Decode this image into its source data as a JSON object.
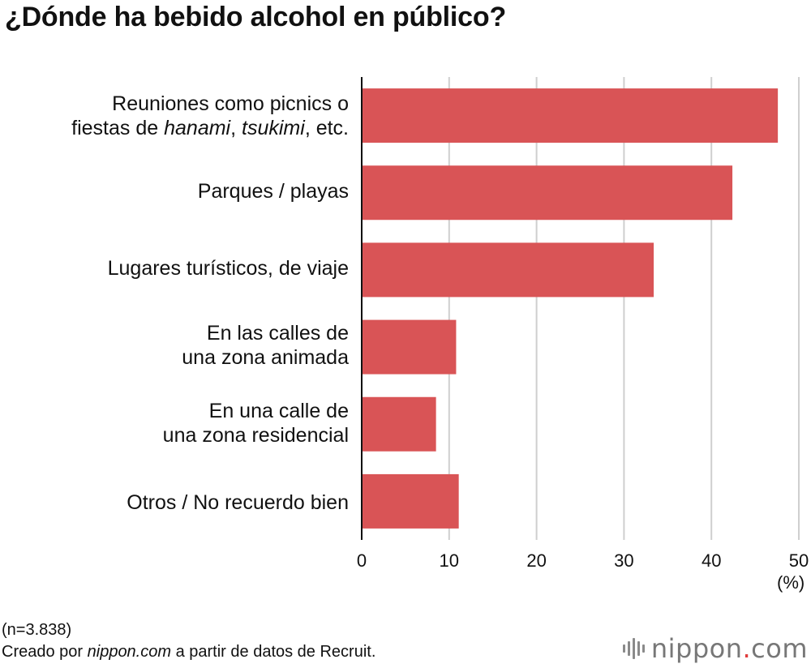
{
  "title": "¿Dónde ha bebido alcohol en público?",
  "chart_data": {
    "type": "bar",
    "orientation": "horizontal",
    "title": "¿Dónde ha bebido alcohol en público?",
    "categories": [
      "Reuniones como picnics o fiestas de hanami, tsukimi, etc.",
      "Parques / playas",
      "Lugares turísticos, de viaje",
      "En las calles de una zona animada",
      "En una calle de una zona residencial",
      "Otros / No recuerdo bien"
    ],
    "values": [
      47.6,
      42.4,
      33.4,
      10.8,
      8.5,
      11.1
    ],
    "xlim": [
      0,
      50
    ],
    "xticks": [
      "0",
      "10",
      "20",
      "30",
      "40",
      "50"
    ],
    "xunit": "(%)",
    "grid": true,
    "bar_color": "#d95456"
  },
  "labels": {
    "cat0": {
      "line1": "Reuniones como picnics o",
      "line2a": "fiestas de ",
      "line2b": "hanami",
      "line2c": ", ",
      "line2d": "tsukimi",
      "line2e": ", etc."
    },
    "cat1": "Parques / playas",
    "cat2": "Lugares turísticos, de viaje",
    "cat3": {
      "line1": "En las calles de",
      "line2": "una zona animada"
    },
    "cat4": {
      "line1": "En una calle de",
      "line2": "una zona residencial"
    },
    "cat5": "Otros / No recuerdo bien"
  },
  "footer": {
    "sample": "(n=3.838)",
    "credit_a": "Creado por ",
    "credit_b": "nippon.com",
    "credit_c": " a partir de datos de Recruit."
  },
  "logo": {
    "text_a": "nippon",
    "text_b": ".",
    "text_c": "com"
  }
}
